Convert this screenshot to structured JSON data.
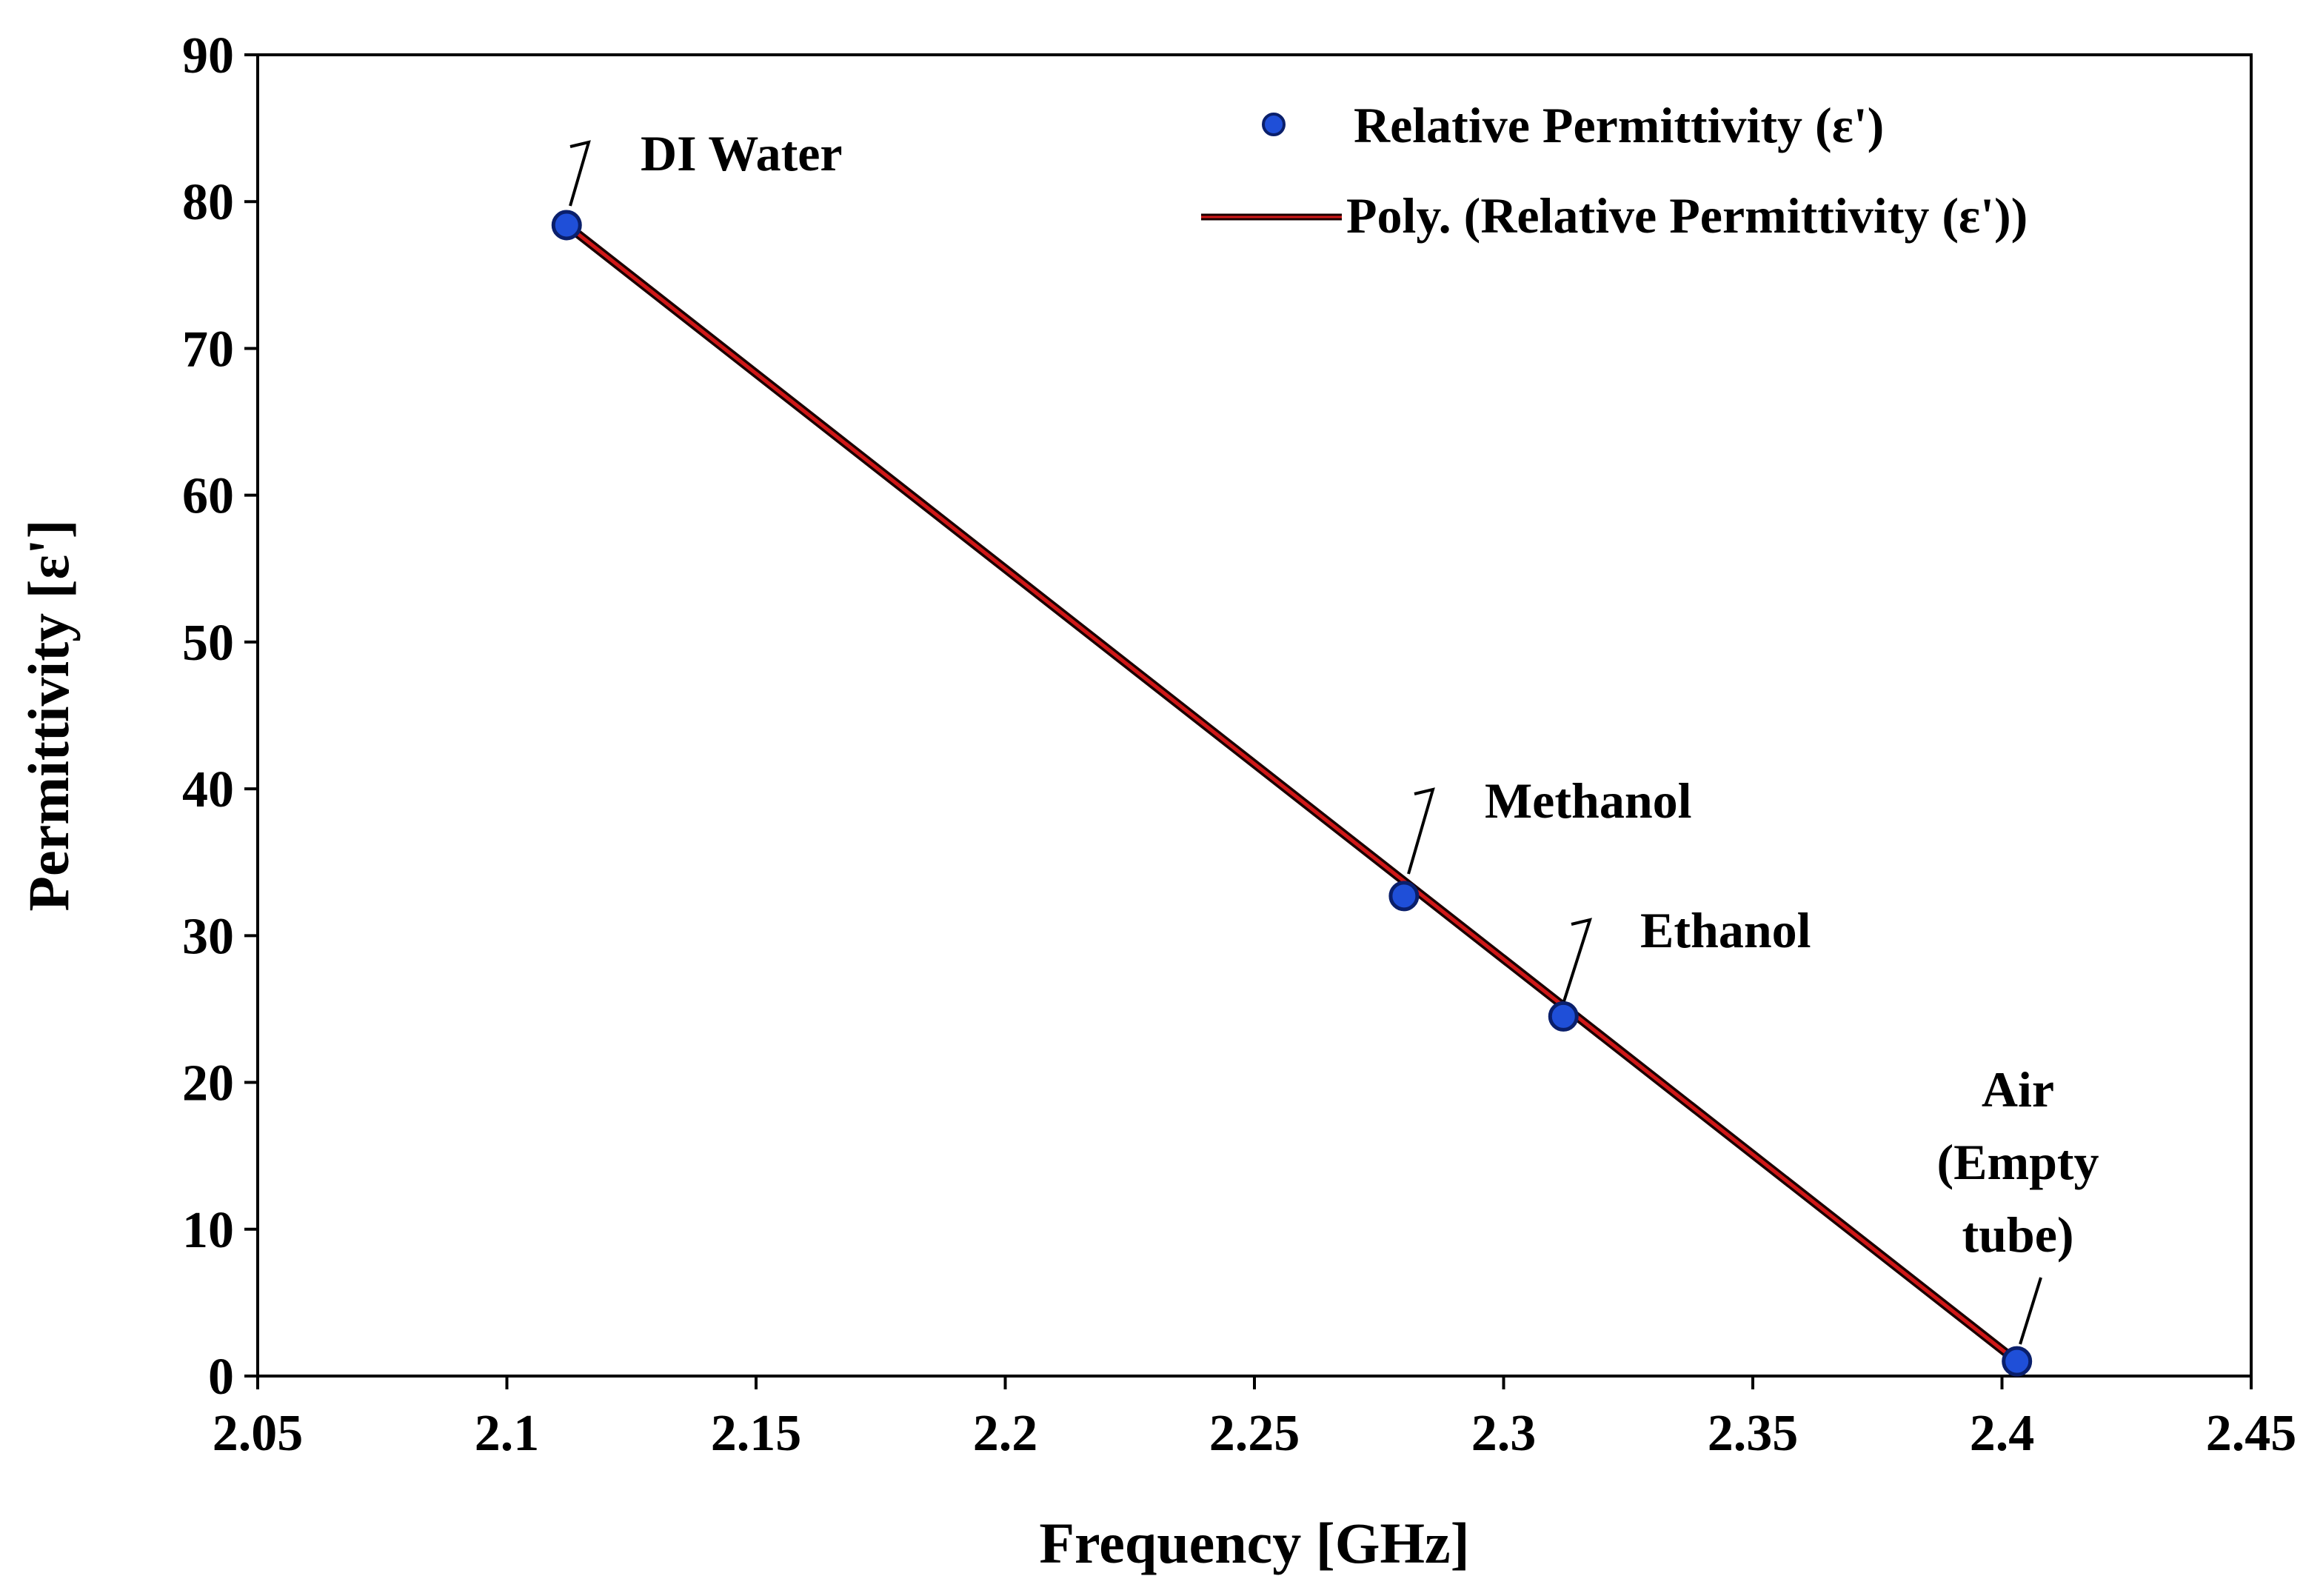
{
  "chart_data": {
    "type": "scatter",
    "title": "",
    "xlabel": "Frequency [GHz]",
    "ylabel": "Permittivity [ε']",
    "xlim": [
      2.05,
      2.45
    ],
    "ylim": [
      0,
      90
    ],
    "xticks": [
      2.05,
      2.1,
      2.15,
      2.2,
      2.25,
      2.3,
      2.35,
      2.4,
      2.45
    ],
    "xtick_labels": [
      "2.05",
      "2.1",
      "2.15",
      "2.2",
      "2.25",
      "2.3",
      "2.35",
      "2.4",
      "2.45"
    ],
    "yticks": [
      0,
      10,
      20,
      30,
      40,
      50,
      60,
      70,
      80,
      90
    ],
    "ytick_labels": [
      "0",
      "10",
      "20",
      "30",
      "40",
      "50",
      "60",
      "70",
      "80",
      "90"
    ],
    "grid": false,
    "legend_position": "top-right",
    "series": [
      {
        "name": "Relative Permittivity (ε')",
        "kind": "scatter",
        "color": "#1f4fd8",
        "x": [
          2.112,
          2.28,
          2.312,
          2.403
        ],
        "y": [
          78.4,
          32.7,
          24.5,
          1.0
        ],
        "labels": [
          "DI Water",
          "Methanol",
          "Ethanol",
          "Air (Empty tube)"
        ]
      },
      {
        "name": "Poly. (Relative Permittivity (ε'))",
        "kind": "trendline",
        "color": "#d01818",
        "x": [
          2.112,
          2.403
        ],
        "y": [
          78.4,
          1.0
        ]
      }
    ],
    "annotations": [
      {
        "lines": [
          "DI Water"
        ]
      },
      {
        "lines": [
          "Methanol"
        ]
      },
      {
        "lines": [
          "Ethanol"
        ]
      },
      {
        "lines": [
          "Air",
          "(Empty",
          "tube)"
        ]
      }
    ]
  }
}
